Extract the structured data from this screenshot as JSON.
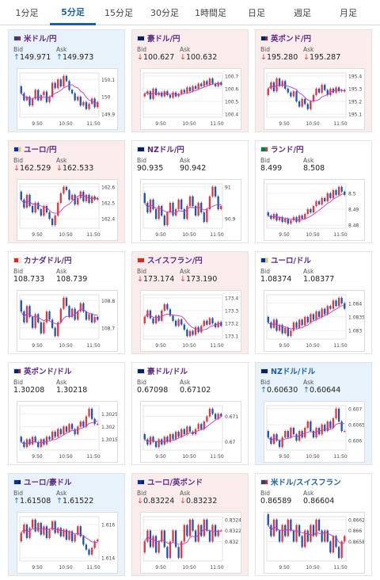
{
  "tabs": [
    {
      "label": "1分足",
      "active": false
    },
    {
      "label": "5分足",
      "active": true
    },
    {
      "label": "15分足",
      "active": false
    },
    {
      "label": "30分足",
      "active": false
    },
    {
      "label": "1時間足",
      "active": false
    },
    {
      "label": "日足",
      "active": false
    },
    {
      "label": "週足",
      "active": false
    },
    {
      "label": "月足",
      "active": false
    }
  ],
  "labels": {
    "bid": "Bid",
    "ask": "Ask"
  },
  "x_ticks": [
    "9:50",
    "10:50",
    "11:50"
  ],
  "cards": [
    {
      "name": "米ドル/円",
      "bid": "149.971",
      "ask": "149.973",
      "trend": "up",
      "flag_colors": [
        "#3c3b6e",
        "#b22234"
      ],
      "y_ticks": [
        "150.1",
        "150",
        "149.9"
      ],
      "candles": [
        150.02,
        149.98,
        150.0,
        149.95,
        149.99,
        150.04,
        149.98,
        150.01,
        150.03,
        149.97,
        150.0,
        150.08,
        150.05,
        150.1,
        150.06,
        150.12,
        150.09,
        150.04,
        150.02,
        149.98,
        150.0,
        149.95,
        149.97,
        149.93,
        149.96,
        149.99,
        149.94,
        149.97
      ]
    },
    {
      "name": "豪ドル/円",
      "bid": "100.627",
      "ask": "100.632",
      "trend": "down",
      "flag_colors": [
        "#012169",
        "#012169"
      ],
      "y_ticks": [
        "100.7",
        "100.6",
        "100.5",
        "100.4"
      ],
      "candles": [
        100.56,
        100.58,
        100.52,
        100.6,
        100.55,
        100.57,
        100.54,
        100.58,
        100.55,
        100.53,
        100.57,
        100.54,
        100.56,
        100.59,
        100.57,
        100.61,
        100.58,
        100.62,
        100.6,
        100.64,
        100.62,
        100.66,
        100.63,
        100.68,
        100.64,
        100.62,
        100.65,
        100.63
      ]
    },
    {
      "name": "英ポンド/円",
      "bid": "195.280",
      "ask": "195.287",
      "trend": "down",
      "flag_colors": [
        "#012169",
        "#c8102e"
      ],
      "y_ticks": [
        "195.4",
        "195.3",
        "195.2",
        "195.1"
      ],
      "candles": [
        195.3,
        195.35,
        195.28,
        195.38,
        195.32,
        195.36,
        195.3,
        195.27,
        195.24,
        195.28,
        195.2,
        195.16,
        195.22,
        195.18,
        195.14,
        195.2,
        195.25,
        195.3,
        195.27,
        195.33,
        195.29,
        195.25,
        195.3,
        195.27,
        195.31,
        195.28,
        195.29,
        195.28
      ]
    },
    {
      "name": "ユーロ/円",
      "bid": "162.529",
      "ask": "162.533",
      "trend": "down",
      "flag_colors": [
        "#003399",
        "#ffcc00"
      ],
      "y_ticks": [
        "162.6",
        "162.5",
        "162.4"
      ],
      "candles": [
        162.52,
        162.47,
        162.55,
        162.48,
        162.44,
        162.5,
        162.46,
        162.42,
        162.48,
        162.44,
        162.4,
        162.36,
        162.42,
        162.5,
        162.56,
        162.6,
        162.58,
        162.52,
        162.55,
        162.49,
        162.53,
        162.57,
        162.51,
        162.55,
        162.5,
        162.54,
        162.52,
        162.53
      ]
    },
    {
      "name": "NZドル/円",
      "bid": "90.935",
      "ask": "90.942",
      "trend": "neutral",
      "flag_colors": [
        "#012169",
        "#012169"
      ],
      "y_ticks": [
        "91",
        "90.9"
      ],
      "candles": [
        90.95,
        90.92,
        90.96,
        90.93,
        90.9,
        90.94,
        90.91,
        90.88,
        90.92,
        90.95,
        90.91,
        90.93,
        90.96,
        90.93,
        90.9,
        90.94,
        90.97,
        90.94,
        90.91,
        90.95,
        90.92,
        90.89,
        90.93,
        90.97,
        91.0,
        90.97,
        90.93,
        90.94
      ]
    },
    {
      "name": "ランド/円",
      "bid": "8.499",
      "ask": "8.508",
      "trend": "neutral",
      "flag_colors": [
        "#007a4d",
        "#de3831"
      ],
      "y_ticks": [
        "8.5",
        "8.49",
        "8.48"
      ],
      "candles": [
        8.486,
        8.484,
        8.487,
        8.483,
        8.485,
        8.482,
        8.484,
        8.481,
        8.483,
        8.485,
        8.482,
        8.486,
        8.484,
        8.487,
        8.49,
        8.488,
        8.492,
        8.495,
        8.493,
        8.497,
        8.495,
        8.5,
        8.497,
        8.502,
        8.499,
        8.504,
        8.501,
        8.499
      ]
    },
    {
      "name": "カナダドル/円",
      "bid": "108.733",
      "ask": "108.739",
      "trend": "neutral",
      "flag_colors": [
        "#d52b1e",
        "#ffffff"
      ],
      "y_ticks": [
        "108.8",
        "108.7"
      ],
      "candles": [
        108.76,
        108.72,
        108.78,
        108.74,
        108.7,
        108.75,
        108.72,
        108.68,
        108.72,
        108.76,
        108.73,
        108.7,
        108.67,
        108.72,
        108.77,
        108.81,
        108.78,
        108.74,
        108.77,
        108.73,
        108.76,
        108.79,
        108.76,
        108.73,
        108.75,
        108.72,
        108.74,
        108.73
      ]
    },
    {
      "name": "スイスフラン/円",
      "bid": "173.174",
      "ask": "173.190",
      "trend": "down",
      "flag_colors": [
        "#d52b1e",
        "#d52b1e"
      ],
      "y_ticks": [
        "173.4",
        "173.3",
        "173.2",
        "173.1"
      ],
      "candles": [
        173.25,
        173.3,
        173.24,
        173.2,
        173.26,
        173.22,
        173.3,
        173.35,
        173.31,
        173.26,
        173.22,
        173.18,
        173.23,
        173.19,
        173.15,
        173.1,
        173.14,
        173.11,
        173.17,
        173.13,
        173.18,
        173.22,
        173.19,
        173.24,
        173.2,
        173.17,
        173.21,
        173.18
      ]
    },
    {
      "name": "ユーロ/ドル",
      "bid": "1.08374",
      "ask": "1.08377",
      "trend": "neutral",
      "flag_colors": [
        "#003399",
        "#ffcc00"
      ],
      "y_ticks": [
        "1.084",
        "1.0835",
        "1.083"
      ],
      "candles": [
        1.0833,
        1.0831,
        1.0834,
        1.083,
        1.0832,
        1.0829,
        1.0831,
        1.0828,
        1.083,
        1.0833,
        1.0831,
        1.0834,
        1.0832,
        1.0835,
        1.0833,
        1.0836,
        1.0834,
        1.0837,
        1.0835,
        1.0838,
        1.0836,
        1.0839,
        1.0838,
        1.0841,
        1.0839,
        1.0842,
        1.084,
        1.0838
      ]
    },
    {
      "name": "英ポンド/ドル",
      "bid": "1.30208",
      "ask": "1.30218",
      "trend": "neutral",
      "flag_colors": [
        "#012169",
        "#c8102e"
      ],
      "y_ticks": [
        "1.3025",
        "1.302",
        "1.3015"
      ],
      "candles": [
        1.3014,
        1.3012,
        1.3015,
        1.3013,
        1.3016,
        1.3014,
        1.3012,
        1.3015,
        1.3013,
        1.3016,
        1.3015,
        1.3018,
        1.3016,
        1.3019,
        1.3017,
        1.302,
        1.3018,
        1.3021,
        1.3019,
        1.3017,
        1.302,
        1.3022,
        1.302,
        1.3024,
        1.3027,
        1.3023,
        1.3021,
        1.3021
      ]
    },
    {
      "name": "豪ドル/ドル",
      "bid": "0.67098",
      "ask": "0.67102",
      "trend": "neutral",
      "flag_colors": [
        "#012169",
        "#012169"
      ],
      "y_ticks": [
        "0.671",
        "0.67"
      ],
      "candles": [
        0.6701,
        0.6699,
        0.6702,
        0.67,
        0.6698,
        0.6701,
        0.6699,
        0.6702,
        0.67,
        0.6703,
        0.6701,
        0.6704,
        0.6702,
        0.6705,
        0.6703,
        0.6706,
        0.6704,
        0.6703,
        0.6705,
        0.6707,
        0.6705,
        0.6708,
        0.671,
        0.6713,
        0.6711,
        0.6709,
        0.6711,
        0.671
      ]
    },
    {
      "name": "NZドル/ドル",
      "bid": "0.60630",
      "ask": "0.60644",
      "trend": "up",
      "flag_colors": [
        "#012169",
        "#012169"
      ],
      "y_ticks": [
        "0.607",
        "0.6065",
        "0.606"
      ],
      "candles": [
        0.6061,
        0.6059,
        0.6062,
        0.606,
        0.6058,
        0.6061,
        0.6063,
        0.6061,
        0.6064,
        0.6062,
        0.606,
        0.6063,
        0.6061,
        0.6064,
        0.6066,
        0.6063,
        0.6061,
        0.6064,
        0.6062,
        0.6065,
        0.6063,
        0.6066,
        0.6064,
        0.6067,
        0.607,
        0.6066,
        0.6063,
        0.6063
      ]
    },
    {
      "name": "ユーロ/豪ドル",
      "bid": "1.61508",
      "ask": "1.61522",
      "trend": "up",
      "flag_colors": [
        "#003399",
        "#012169"
      ],
      "y_ticks": [
        "1.616",
        "1.614"
      ],
      "candles": [
        1.6155,
        1.616,
        1.6152,
        1.6158,
        1.6163,
        1.6156,
        1.6161,
        1.6154,
        1.6159,
        1.6152,
        1.6157,
        1.6162,
        1.6155,
        1.6158,
        1.6153,
        1.6157,
        1.6151,
        1.6156,
        1.615,
        1.6154,
        1.6159,
        1.6153,
        1.6148,
        1.6145,
        1.6142,
        1.6146,
        1.615,
        1.6151
      ]
    },
    {
      "name": "ユーロ/英ポンド",
      "bid": "0.83224",
      "ask": "0.83232",
      "trend": "down",
      "flag_colors": [
        "#003399",
        "#012169"
      ],
      "y_ticks": [
        "0.8324",
        "0.8322",
        "0.832"
      ],
      "candles": [
        0.832,
        0.8322,
        0.8319,
        0.8321,
        0.8318,
        0.832,
        0.8322,
        0.8319,
        0.8317,
        0.832,
        0.8322,
        0.8319,
        0.8317,
        0.832,
        0.8323,
        0.8321,
        0.8324,
        0.8322,
        0.832,
        0.8323,
        0.8321,
        0.8324,
        0.8322,
        0.832,
        0.8323,
        0.8321,
        0.8322,
        0.8322
      ]
    },
    {
      "name": "米ドル/スイスフラン",
      "bid": "0.86589",
      "ask": "0.86604",
      "trend": "neutral",
      "flag_colors": [
        "#3c3b6e",
        "#d52b1e"
      ],
      "y_ticks": [
        "0.8662",
        "0.866",
        "0.8658"
      ],
      "candles": [
        0.8661,
        0.8659,
        0.8662,
        0.866,
        0.8658,
        0.8661,
        0.8659,
        0.8662,
        0.866,
        0.8658,
        0.8661,
        0.8659,
        0.8657,
        0.866,
        0.8658,
        0.8661,
        0.8659,
        0.8662,
        0.866,
        0.8658,
        0.866,
        0.8658,
        0.8656,
        0.8659,
        0.8657,
        0.8655,
        0.8658,
        0.8659
      ]
    }
  ],
  "colors": {
    "up_candle": "#e8323c",
    "down_candle": "#1c53b8",
    "ma_line": "#c33acb",
    "tab_accent": "#1f5fa8"
  }
}
